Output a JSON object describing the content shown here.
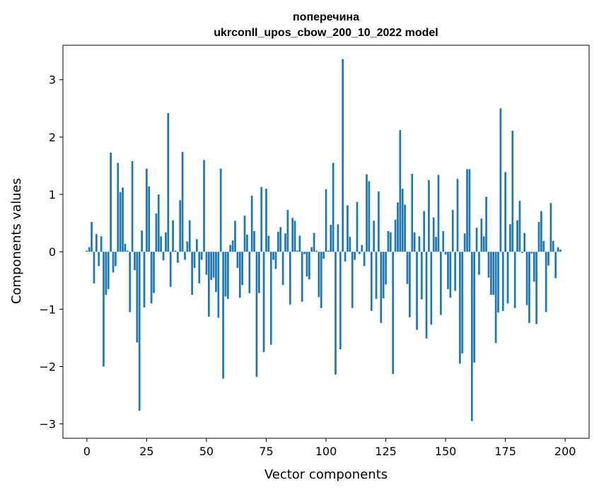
{
  "chart_data": {
    "type": "bar",
    "title": [
      "поперечина",
      "ukrconll_upos_cbow_200_10_2022 model"
    ],
    "xlabel": "Vector components",
    "ylabel": "Components values",
    "xlim": [
      -10,
      210
    ],
    "ylim": [
      -3.25,
      3.6
    ],
    "xticks": [
      0,
      25,
      50,
      75,
      100,
      125,
      150,
      175,
      200
    ],
    "yticks": [
      -3,
      -2,
      -1,
      0,
      1,
      2,
      3
    ],
    "ytick_labels": [
      "−3",
      "−2",
      "−1",
      "0",
      "1",
      "2",
      "3"
    ],
    "bar_color": "#1f77b4",
    "grid": false,
    "values": [
      0.02,
      0.08,
      0.52,
      -0.55,
      0.31,
      -0.25,
      0.27,
      -2.0,
      -0.75,
      -0.65,
      1.73,
      -0.36,
      -0.25,
      1.55,
      1.04,
      1.12,
      0.14,
      0.02,
      -1.05,
      1.58,
      -0.32,
      -1.58,
      -2.77,
      0.37,
      -0.97,
      1.45,
      1.14,
      -0.9,
      -0.72,
      0.67,
      1.0,
      0.27,
      -0.15,
      0.34,
      2.42,
      -0.61,
      0.55,
      0.02,
      -0.19,
      0.9,
      1.74,
      -0.14,
      0.18,
      0.55,
      -0.75,
      -0.28,
      0.22,
      -0.55,
      -0.14,
      1.6,
      -0.4,
      -1.13,
      -0.49,
      -0.45,
      -0.7,
      -1.15,
      1.45,
      -2.21,
      -0.78,
      -0.82,
      0.12,
      0.2,
      0.54,
      -0.28,
      -0.8,
      -0.58,
      0.63,
      0.3,
      -0.72,
      0.98,
      0.36,
      -2.18,
      -0.72,
      1.13,
      -1.75,
      1.1,
      0.28,
      -1.62,
      -0.14,
      -0.3,
      0.35,
      0.43,
      -0.58,
      0.32,
      0.73,
      -0.92,
      0.59,
      0.54,
      0.02,
      0.28,
      -0.87,
      -0.04,
      -0.43,
      -0.48,
      0.08,
      0.33,
      0.02,
      -0.79,
      -0.98,
      -0.12,
      1.09,
      0.02,
      0.47,
      1.55,
      -2.14,
      0.48,
      -1.7,
      3.36,
      -0.17,
      0.81,
      0.26,
      -0.98,
      -0.14,
      0.87,
      -0.04,
      0.12,
      -0.25,
      1.35,
      1.23,
      -1.03,
      0.54,
      -0.82,
      1.05,
      -1.24,
      -0.81,
      -0.57,
      0.36,
      0.34,
      -2.13,
      0.56,
      0.86,
      2.12,
      1.1,
      0.82,
      -0.56,
      -1.14,
      1.36,
      0.34,
      -1.36,
      0.27,
      -0.83,
      0.71,
      -1.51,
      1.25,
      -1.27,
      0.6,
      0.26,
      1.34,
      -1.1,
      0.36,
      -0.05,
      -0.65,
      -0.8,
      0.73,
      -0.68,
      1.27,
      -1.95,
      -1.77,
      0.32,
      1.44,
      1.44,
      -2.95,
      -1.93,
      0.42,
      -0.4,
      0.58,
      0.27,
      0.96,
      -0.45,
      -0.75,
      -0.75,
      -1.59,
      -1.06,
      2.5,
      -1.03,
      1.39,
      -0.9,
      0.48,
      2.11,
      -0.98,
      0.55,
      0.89,
      -0.02,
      0.33,
      -0.93,
      -1.24,
      -0.03,
      -0.52,
      -1.26,
      0.52,
      0.71,
      0.19,
      -1.05,
      -0.24,
      0.85,
      0.19,
      -0.46,
      0.08,
      0.04
    ]
  }
}
